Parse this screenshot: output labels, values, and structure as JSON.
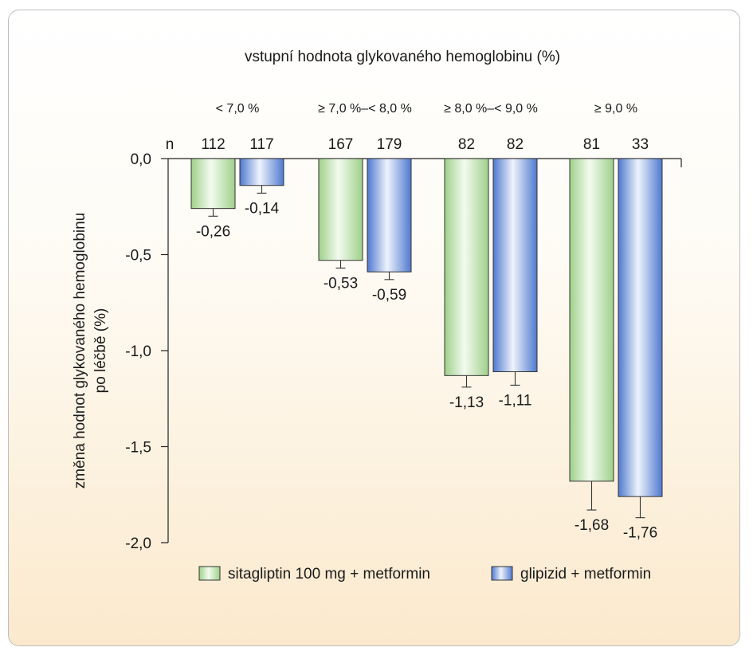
{
  "chart_data": {
    "type": "bar",
    "title": "vstupní hodnota glykovaného hemoglobinu (%)",
    "ylabel_line1": "změna hodnot glykovaného hemoglobinu",
    "ylabel_line2": "po léčbě (%)",
    "ylim": [
      -2.0,
      0.0
    ],
    "yticks": [
      "0,0",
      "-0,5",
      "-1,0",
      "-1,5",
      "-2,0"
    ],
    "ytick_values": [
      0.0,
      -0.5,
      -1.0,
      -1.5,
      -2.0
    ],
    "n_label": "n",
    "categories": [
      "< 7,0 %",
      "≥ 7,0 %–< 8,0 %",
      "≥ 8,0 %–< 9,0 %",
      "≥ 9,0 %"
    ],
    "series": [
      {
        "name": "sitagliptin 100 mg + metformin",
        "color": "#cfe8c2",
        "values": [
          -0.26,
          -0.53,
          -1.13,
          -1.68
        ],
        "error": [
          0.04,
          0.04,
          0.06,
          0.15
        ],
        "n": [
          "112",
          "167",
          "82",
          "81"
        ],
        "value_labels": [
          "-0,26",
          "-0,53",
          "-1,13",
          "-1,68"
        ]
      },
      {
        "name": "glipizid + metformin",
        "color": "#9db6e3",
        "values": [
          -0.14,
          -0.59,
          -1.11,
          -1.76
        ],
        "error": [
          0.04,
          0.04,
          0.07,
          0.11
        ],
        "n": [
          "117",
          "179",
          "82",
          "33"
        ],
        "value_labels": [
          "-0,14",
          "-0,59",
          "-1,11",
          "-1,76"
        ]
      }
    ],
    "legend_position": "bottom",
    "grid": false
  }
}
